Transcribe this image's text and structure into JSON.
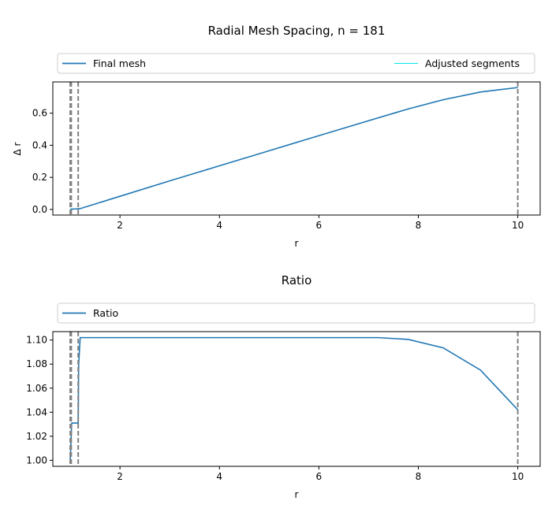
{
  "chart_data": [
    {
      "type": "line",
      "title": "Radial Mesh Spacing, n = 181",
      "xlabel": "r",
      "ylabel": "Δ r",
      "xlim": [
        0.65,
        10.45
      ],
      "ylim": [
        -0.035,
        0.795
      ],
      "xticks": [
        2,
        4,
        6,
        8,
        10
      ],
      "yticks": [
        0.0,
        0.2,
        0.4,
        0.6
      ],
      "ytick_labels": [
        "0.0",
        "0.2",
        "0.4",
        "0.6"
      ],
      "legend_placement": "above-plot",
      "legend": [
        {
          "label": "Final mesh",
          "color": "#1f77b4"
        },
        {
          "label": "Adjusted segments",
          "color": "#00e5ee"
        }
      ],
      "series": [
        {
          "name": "Final mesh",
          "color": "#1f77b4",
          "x": [
            1.0,
            1.005,
            1.03,
            1.06,
            1.1,
            1.15,
            1.2,
            2.0,
            3.0,
            4.0,
            5.0,
            6.0,
            7.0,
            7.8,
            8.5,
            9.25,
            10.0
          ],
          "y": [
            0.002,
            0.002,
            0.002,
            0.002,
            0.003,
            0.004,
            0.005,
            0.082,
            0.178,
            0.272,
            0.366,
            0.46,
            0.553,
            0.627,
            0.684,
            0.732,
            0.76
          ]
        },
        {
          "name": "Adjusted segments",
          "color": "#00e5ee",
          "x": [
            1.0,
            1.02
          ],
          "y": [
            0.002,
            0.002
          ]
        }
      ],
      "vlines": [
        1.0,
        1.01,
        1.02,
        1.16,
        10.0
      ]
    },
    {
      "type": "line",
      "title": "Ratio",
      "xlabel": "r",
      "ylabel": "",
      "xlim": [
        0.65,
        10.45
      ],
      "ylim": [
        0.995,
        1.107
      ],
      "xticks": [
        2,
        4,
        6,
        8,
        10
      ],
      "yticks": [
        1.0,
        1.02,
        1.04,
        1.06,
        1.08,
        1.1
      ],
      "ytick_labels": [
        "1.00",
        "1.02",
        "1.04",
        "1.06",
        "1.08",
        "1.10"
      ],
      "legend_placement": "above-plot",
      "legend": [
        {
          "label": "Ratio",
          "color": "#1f77b4"
        }
      ],
      "series": [
        {
          "name": "Ratio",
          "color": "#1f77b4",
          "x": [
            1.0,
            1.03,
            1.05,
            1.16,
            1.17,
            1.2,
            2.0,
            4.0,
            6.0,
            7.2,
            7.8,
            8.5,
            9.25,
            10.0
          ],
          "y": [
            1.0,
            1.031,
            1.031,
            1.031,
            1.08,
            1.102,
            1.102,
            1.102,
            1.102,
            1.102,
            1.1005,
            1.0935,
            1.075,
            1.042
          ]
        }
      ],
      "vlines": [
        1.0,
        1.01,
        1.02,
        1.16,
        10.0
      ]
    }
  ]
}
